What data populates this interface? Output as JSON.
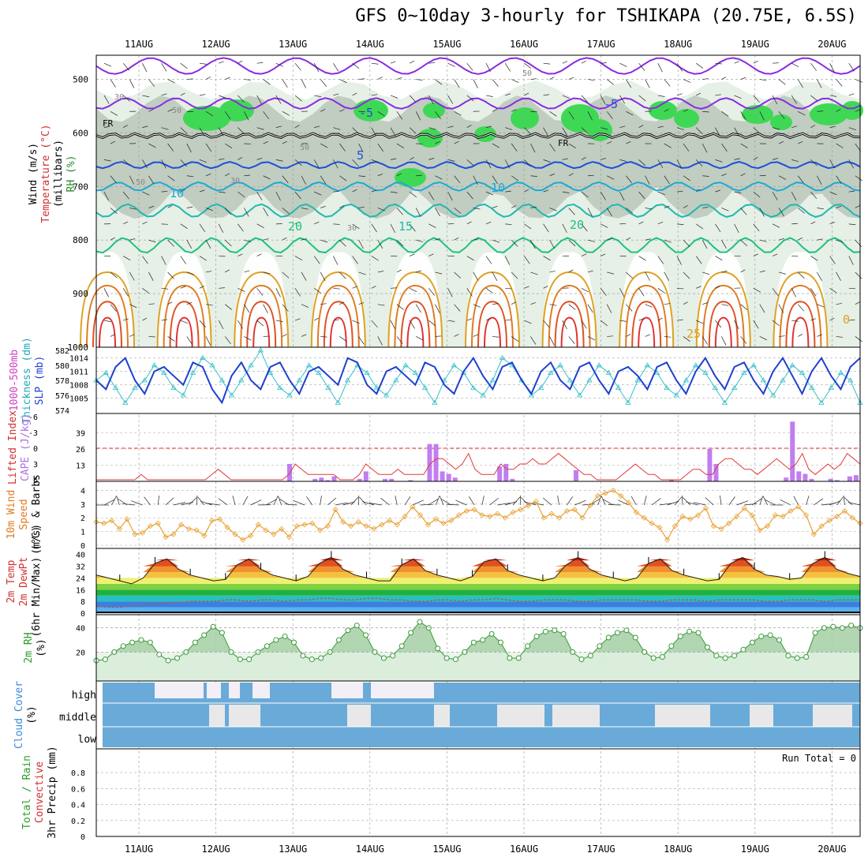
{
  "title": "GFS 0~10day 3-hourly for TSHIKAPA (20.75E, 6.5S)",
  "colors": {
    "rh_green": "#3fd855",
    "rh_grey": "#b8c7b8",
    "rh_light": "#e6f0e6",
    "slp": "#1f3fd0",
    "thickness": "#35c0c8",
    "lifted": "#e03a3a",
    "cape": "#c07ef0",
    "wind": "#e8a030",
    "rh2m": "#3a9a3a",
    "cloud": "#6aaad8",
    "freezing": "#000000",
    "temp_purple": "#8a2be2",
    "temp_blue": "#1f4fd8",
    "temp_cyan": "#20a8d8",
    "temp_green": "#20c080",
    "temp_orange": "#e0a020",
    "temp_red": "#e03030"
  },
  "dates": [
    "11AUG",
    "12AUG",
    "13AUG",
    "14AUG",
    "15AUG",
    "16AUG",
    "17AUG",
    "18AUG",
    "19AUG",
    "20AUG"
  ],
  "panel_labels": {
    "upper": [
      {
        "text": "Wind (m/s)",
        "color": "#000000"
      },
      {
        "text": "Temperature (°C)",
        "color": "#d03030"
      },
      {
        "text": "(millibars)",
        "color": "#000000"
      },
      {
        "text": "RH (%)",
        "color": "#2a8a2a"
      }
    ],
    "slp": [
      {
        "text": "1000-500mb",
        "color": "#d040c0"
      },
      {
        "text": "Thickness (dm)",
        "color": "#20a8b8"
      },
      {
        "text": "SLP (mb)",
        "color": "#1f3fd0"
      }
    ],
    "cape": [
      {
        "text": "Lifted Index",
        "color": "#d03030"
      },
      {
        "text": "CAPE (J/kg)",
        "color": "#b070e0"
      }
    ],
    "wind": [
      {
        "text": "10m Wind",
        "color": "#e07a20"
      },
      {
        "text": "Speed",
        "color": "#e07a20"
      },
      {
        "text": "(m/s) & Barbs",
        "color": "#000000"
      }
    ],
    "temp": [
      {
        "text": "2m Temp",
        "color": "#d03030"
      },
      {
        "text": "2m DewPt",
        "color": "#d03030"
      },
      {
        "text": "(6hr Min/Max) (°C)",
        "color": "#000000"
      }
    ],
    "rh": [
      {
        "text": "2m RH",
        "color": "#2a9a2a"
      },
      {
        "text": "(%)",
        "color": "#000000"
      }
    ],
    "cloud": [
      {
        "text": "Cloud Cover",
        "color": "#3a8ad8"
      },
      {
        "text": "(%)",
        "color": "#000000"
      }
    ],
    "precip": [
      {
        "text": "Total / Rain",
        "color": "#2aa02a"
      },
      {
        "text": "Convective",
        "color": "#d03030"
      },
      {
        "text": "3hr Precip (mm)",
        "color": "#000000"
      }
    ]
  },
  "run_total": "Run Total = 0",
  "chart_data": [
    {
      "type": "heatmap",
      "name": "pressure-level cross section",
      "y_ticks": [
        "500",
        "600",
        "700",
        "800",
        "900",
        "1000"
      ],
      "temp_contour_labels": [
        "-5",
        "-5",
        "5",
        "10",
        "10",
        "15",
        "20",
        "20",
        "25",
        "0"
      ],
      "rh_contour_labels": [
        "30",
        "50",
        "30",
        "50",
        "30",
        "50",
        "50"
      ],
      "freezing_label": "FR"
    },
    {
      "type": "line",
      "name": "slp-thickness",
      "slp_ticks": [
        "1005",
        "1008",
        "1011",
        "1014"
      ],
      "thickness_ticks": [
        "574",
        "576",
        "578",
        "580",
        "582"
      ],
      "slp": [
        1009,
        1007,
        1012,
        1014,
        1009,
        1006,
        1011,
        1012,
        1010,
        1008,
        1013,
        1012,
        1007,
        1004,
        1010,
        1013,
        1009,
        1007,
        1012,
        1013,
        1009,
        1006,
        1011,
        1012,
        1010,
        1008,
        1014,
        1013,
        1008,
        1006,
        1011,
        1012,
        1010,
        1008,
        1013,
        1012,
        1008,
        1006,
        1011,
        1014,
        1010,
        1007,
        1012,
        1013,
        1009,
        1006,
        1011,
        1013,
        1009,
        1007,
        1012,
        1013,
        1009,
        1006,
        1011,
        1012,
        1010,
        1007,
        1012,
        1013,
        1009,
        1006,
        1011,
        1014,
        1010,
        1007,
        1012,
        1013,
        1009,
        1006,
        1011,
        1014,
        1010,
        1006,
        1011,
        1014,
        1010,
        1007,
        1012,
        1014
      ],
      "thickness": [
        578,
        579,
        577,
        575,
        577,
        578,
        580,
        579,
        577,
        576,
        579,
        581,
        580,
        578,
        576,
        578,
        580,
        582,
        579,
        577,
        576,
        578,
        580,
        579,
        577,
        575,
        578,
        580,
        579,
        577,
        576,
        578,
        580,
        579,
        577,
        575,
        578,
        580,
        579,
        577,
        576,
        578,
        581,
        580,
        578,
        576,
        577,
        579,
        580,
        578,
        576,
        578,
        580,
        579,
        577,
        575,
        578,
        580,
        579,
        577,
        576,
        578,
        580,
        579,
        577,
        575,
        577,
        579,
        580,
        578,
        576,
        578,
        580,
        579,
        577,
        575,
        577,
        579,
        578,
        575
      ]
    },
    {
      "type": "bar",
      "name": "cape-lifted-index",
      "cape_ticks": [
        "13",
        "26",
        "39"
      ],
      "li_ticks": [
        "6",
        "3",
        "0",
        "-3",
        "-6"
      ],
      "cape": [
        0,
        0,
        0,
        0,
        0,
        0,
        0,
        0,
        0,
        0,
        0,
        0,
        0,
        0,
        0,
        0,
        0,
        0,
        0,
        0,
        0,
        0,
        0,
        0,
        0,
        0,
        0,
        0,
        0,
        0,
        14,
        0,
        0,
        0,
        2,
        3,
        1,
        4,
        0,
        0,
        0,
        2,
        8,
        0,
        0,
        2,
        2,
        0,
        0,
        1,
        0,
        0,
        30,
        30,
        8,
        6,
        3,
        0,
        0,
        0,
        0,
        0,
        0,
        12,
        14,
        2,
        0,
        0,
        0,
        0,
        0,
        0,
        0,
        0,
        0,
        9,
        0,
        0,
        0,
        0,
        0,
        0,
        0,
        0,
        0,
        0,
        0,
        0,
        0,
        0,
        1,
        0,
        0,
        0,
        0,
        0,
        26,
        14,
        0,
        0,
        0,
        0,
        0,
        0,
        0,
        0,
        0,
        0,
        3,
        48,
        8,
        6,
        2,
        0,
        0,
        2,
        1,
        0,
        4,
        5
      ],
      "lifted_index": [
        6,
        6,
        6,
        6,
        6,
        6,
        6,
        5,
        6,
        6,
        6,
        6,
        6,
        6,
        6,
        6,
        6,
        6,
        5,
        4,
        5,
        6,
        6,
        6,
        6,
        6,
        6,
        6,
        6,
        6,
        5,
        3,
        4,
        5,
        5,
        5,
        5,
        5,
        6,
        6,
        6,
        5,
        3,
        4,
        5,
        5,
        5,
        4,
        5,
        5,
        5,
        5,
        3,
        2,
        2,
        3,
        4,
        3,
        1,
        4,
        5,
        5,
        5,
        3,
        4,
        4,
        3,
        3,
        2,
        3,
        3,
        2,
        1,
        2,
        3,
        4,
        5,
        5,
        6,
        6,
        6,
        6,
        5,
        4,
        3,
        4,
        5,
        5,
        6,
        6,
        6,
        6,
        5,
        4,
        4,
        5,
        5,
        3,
        2,
        2,
        3,
        4,
        4,
        5,
        4,
        3,
        2,
        3,
        4,
        3,
        1,
        4,
        5,
        4,
        3,
        4,
        3,
        1,
        2,
        3
      ]
    },
    {
      "type": "line",
      "name": "10m-wind",
      "y_ticks": [
        "0",
        "1",
        "2",
        "3",
        "4"
      ],
      "speed": [
        1.7,
        1.6,
        1.8,
        1.2,
        1.9,
        0.8,
        0.9,
        1.4,
        1.6,
        0.6,
        0.8,
        1.5,
        1.2,
        1.1,
        0.7,
        1.8,
        1.9,
        1.3,
        0.8,
        0.4,
        0.7,
        1.5,
        1.1,
        0.8,
        1.2,
        0.6,
        1.4,
        1.5,
        1.6,
        1.1,
        1.4,
        2.6,
        1.7,
        1.4,
        1.7,
        1.4,
        1.2,
        1.5,
        1.8,
        1.5,
        2.1,
        2.8,
        2.2,
        1.5,
        1.9,
        1.6,
        1.8,
        2.2,
        2.5,
        2.6,
        2.2,
        2.1,
        2.3,
        2.0,
        2.4,
        2.6,
        2.9,
        3.2,
        2.0,
        2.3,
        2.0,
        2.5,
        2.6,
        2.0,
        2.9,
        3.6,
        3.8,
        4.0,
        3.6,
        3.1,
        2.4,
        2.0,
        1.6,
        1.3,
        0.4,
        1.4,
        2.1,
        1.9,
        2.2,
        2.7,
        1.4,
        1.2,
        1.6,
        2.1,
        2.7,
        2.2,
        1.1,
        1.4,
        2.2,
        2.1,
        2.5,
        2.8,
        2.2,
        0.8,
        1.4,
        1.8,
        2.1,
        2.5,
        2.0,
        1.6
      ]
    },
    {
      "type": "area",
      "name": "2m-temp",
      "y_ticks": [
        "0",
        "8",
        "16",
        "24",
        "32",
        "40"
      ],
      "temp": [
        26,
        24,
        22,
        20,
        24,
        34,
        37,
        30,
        26,
        24,
        22,
        23,
        33,
        37,
        30,
        26,
        24,
        22,
        25,
        34,
        38,
        30,
        26,
        24,
        22,
        22,
        33,
        37,
        29,
        26,
        24,
        22,
        25,
        35,
        37,
        29,
        26,
        24,
        22,
        24,
        33,
        38,
        30,
        26,
        24,
        22,
        24,
        34,
        37,
        29,
        26,
        24,
        22,
        23,
        34,
        38,
        30,
        26,
        25,
        23,
        24,
        34,
        38,
        30,
        27,
        25
      ],
      "dewpoint": [
        5,
        4,
        4,
        5,
        6,
        6,
        7,
        7,
        8,
        8,
        8,
        9,
        9,
        8,
        9,
        9,
        8,
        9,
        9,
        10,
        10,
        9,
        9,
        10,
        10,
        9,
        9,
        8,
        8,
        9,
        9,
        8,
        9,
        9,
        10,
        9,
        8,
        8,
        9,
        9,
        9,
        8,
        8,
        9,
        9,
        9,
        9,
        8,
        8,
        9,
        9,
        9,
        8,
        9,
        9,
        9,
        9,
        8,
        8,
        9,
        9,
        9,
        8,
        9,
        9,
        9
      ]
    },
    {
      "type": "area",
      "name": "2m-rh",
      "y_ticks": [
        "20",
        "40"
      ],
      "rh": [
        13,
        14,
        20,
        25,
        28,
        30,
        28,
        18,
        13,
        15,
        20,
        28,
        34,
        41,
        36,
        20,
        14,
        14,
        20,
        25,
        30,
        33,
        28,
        17,
        14,
        15,
        20,
        30,
        38,
        42,
        34,
        20,
        15,
        17,
        25,
        36,
        45,
        40,
        23,
        15,
        14,
        20,
        28,
        30,
        35,
        28,
        15,
        15,
        25,
        33,
        37,
        38,
        35,
        20,
        14,
        17,
        25,
        32,
        36,
        38,
        32,
        20,
        15,
        16,
        25,
        33,
        37,
        36,
        24,
        17,
        15,
        17,
        22,
        28,
        33,
        34,
        30,
        17,
        15,
        16,
        36,
        40,
        41,
        40,
        42,
        40
      ],
      "ylim": [
        0,
        47
      ]
    },
    {
      "type": "bar",
      "name": "cloud-cover",
      "levels": [
        "high",
        "middle",
        "low"
      ]
    },
    {
      "type": "bar",
      "name": "3hr-precip",
      "y_ticks": [
        "0",
        "0.2",
        "0.4",
        "0.6",
        "0.8"
      ],
      "values": []
    }
  ]
}
